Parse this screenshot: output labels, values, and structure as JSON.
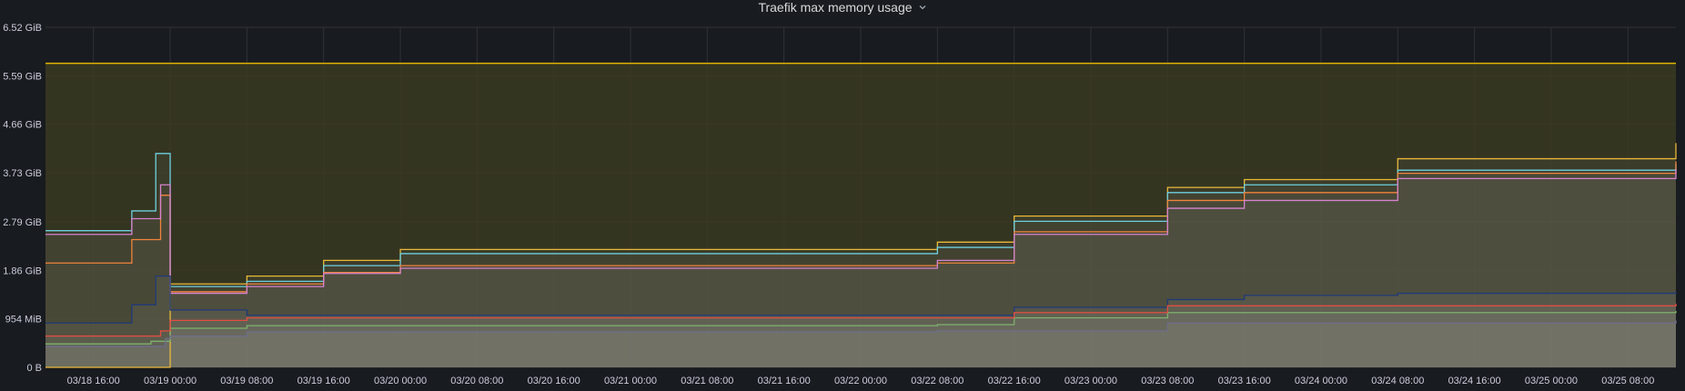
{
  "panel": {
    "title": "Traefik max memory usage",
    "title_icon": "chevron-down-icon"
  },
  "chart_data": {
    "type": "area",
    "title": "Traefik max memory usage",
    "xlabel": "",
    "ylabel": "",
    "y_unit": "GiB",
    "ylim": [
      0,
      6.52
    ],
    "y_ticks": [
      0,
      0.9317,
      1.86,
      2.79,
      3.73,
      4.66,
      5.59,
      6.52
    ],
    "y_tick_labels": [
      "0 B",
      "954 MiB",
      "1.86 GiB",
      "2.79 GiB",
      "3.73 GiB",
      "4.66 GiB",
      "5.59 GiB",
      "6.52 GiB"
    ],
    "xlim": [
      "03/18 11:00",
      "03/25 13:00"
    ],
    "x_tick_labels": [
      "03/18 16:00",
      "03/19 00:00",
      "03/19 08:00",
      "03/19 16:00",
      "03/20 00:00",
      "03/20 08:00",
      "03/20 16:00",
      "03/21 00:00",
      "03/21 08:00",
      "03/21 16:00",
      "03/22 00:00",
      "03/22 08:00",
      "03/22 16:00",
      "03/23 00:00",
      "03/23 08:00",
      "03/23 16:00",
      "03/24 00:00",
      "03/24 08:00",
      "03/24 16:00",
      "03/25 00:00",
      "03/25 08:00"
    ],
    "grid": true,
    "legend": "none",
    "limit_line": {
      "value": 5.83,
      "color": "#e0b400"
    },
    "colors": {
      "background": "#181b1f",
      "grid": "#2f3237",
      "axis_text": "#ccccdc",
      "limit_fill": "#3a3a22"
    },
    "series": [
      {
        "color": "#eab839",
        "fill": 0.05,
        "values": [
          [
            "03/18 11:00",
            0.0
          ],
          [
            "03/18 23:30",
            0.0
          ],
          [
            "03/19 00:00",
            1.6
          ],
          [
            "03/19 08:00",
            1.75
          ],
          [
            "03/19 16:00",
            2.05
          ],
          [
            "03/20 00:00",
            2.26
          ],
          [
            "03/22 08:00",
            2.4
          ],
          [
            "03/22 16:00",
            2.9
          ],
          [
            "03/23 08:00",
            3.45
          ],
          [
            "03/23 16:00",
            3.6
          ],
          [
            "03/24 08:00",
            4.0
          ],
          [
            "03/25 13:00",
            4.3
          ]
        ]
      },
      {
        "color": "#6ed0e0",
        "fill": 0.05,
        "values": [
          [
            "03/18 11:00",
            2.62
          ],
          [
            "03/18 20:00",
            3.0
          ],
          [
            "03/18 22:30",
            4.1
          ],
          [
            "03/19 00:00",
            1.55
          ],
          [
            "03/19 08:00",
            1.65
          ],
          [
            "03/19 16:00",
            1.95
          ],
          [
            "03/20 00:00",
            2.18
          ],
          [
            "03/22 08:00",
            2.3
          ],
          [
            "03/22 16:00",
            2.8
          ],
          [
            "03/23 08:00",
            3.35
          ],
          [
            "03/23 16:00",
            3.5
          ],
          [
            "03/24 08:00",
            3.78
          ],
          [
            "03/25 13:00",
            3.9
          ]
        ]
      },
      {
        "color": "#ef843c",
        "fill": 0.05,
        "values": [
          [
            "03/18 11:00",
            2.0
          ],
          [
            "03/18 20:00",
            2.45
          ],
          [
            "03/18 23:00",
            3.3
          ],
          [
            "03/19 00:00",
            1.45
          ],
          [
            "03/19 08:00",
            1.6
          ],
          [
            "03/19 16:00",
            1.82
          ],
          [
            "03/20 00:00",
            1.95
          ],
          [
            "03/22 08:00",
            2.0
          ],
          [
            "03/22 16:00",
            2.6
          ],
          [
            "03/23 08:00",
            3.2
          ],
          [
            "03/23 16:00",
            3.35
          ],
          [
            "03/24 08:00",
            3.72
          ],
          [
            "03/25 13:00",
            3.95
          ]
        ]
      },
      {
        "color": "#d683ce",
        "fill": 0.05,
        "values": [
          [
            "03/18 11:00",
            2.55
          ],
          [
            "03/18 20:00",
            2.85
          ],
          [
            "03/18 23:00",
            3.5
          ],
          [
            "03/19 00:00",
            1.42
          ],
          [
            "03/19 08:00",
            1.55
          ],
          [
            "03/19 16:00",
            1.8
          ],
          [
            "03/20 00:00",
            1.9
          ],
          [
            "03/22 08:00",
            2.05
          ],
          [
            "03/22 16:00",
            2.55
          ],
          [
            "03/23 08:00",
            3.05
          ],
          [
            "03/23 16:00",
            3.2
          ],
          [
            "03/24 08:00",
            3.62
          ],
          [
            "03/25 13:00",
            3.8
          ]
        ]
      },
      {
        "color": "#1f3a78",
        "fill": 0.08,
        "values": [
          [
            "03/18 11:00",
            0.85
          ],
          [
            "03/18 20:00",
            1.2
          ],
          [
            "03/18 22:30",
            1.75
          ],
          [
            "03/19 00:00",
            1.1
          ],
          [
            "03/19 08:00",
            1.0
          ],
          [
            "03/22 08:00",
            1.0
          ],
          [
            "03/22 16:00",
            1.15
          ],
          [
            "03/23 08:00",
            1.3
          ],
          [
            "03/23 16:00",
            1.38
          ],
          [
            "03/24 08:00",
            1.42
          ],
          [
            "03/25 13:00",
            1.45
          ]
        ]
      },
      {
        "color": "#7eb26d",
        "fill": 0.08,
        "values": [
          [
            "03/18 11:00",
            0.45
          ],
          [
            "03/18 22:00",
            0.5
          ],
          [
            "03/19 00:00",
            0.75
          ],
          [
            "03/19 08:00",
            0.8
          ],
          [
            "03/22 08:00",
            0.82
          ],
          [
            "03/22 16:00",
            0.95
          ],
          [
            "03/23 08:00",
            1.05
          ],
          [
            "03/25 13:00",
            1.08
          ]
        ]
      },
      {
        "color": "#e24d42",
        "fill": 0.08,
        "values": [
          [
            "03/18 11:00",
            0.6
          ],
          [
            "03/18 23:00",
            0.7
          ],
          [
            "03/19 00:00",
            0.9
          ],
          [
            "03/19 08:00",
            0.95
          ],
          [
            "03/22 08:00",
            0.95
          ],
          [
            "03/22 16:00",
            1.05
          ],
          [
            "03/23 08:00",
            1.18
          ],
          [
            "03/25 13:00",
            1.22
          ]
        ]
      },
      {
        "color": "#6d6e8a",
        "fill": 0.1,
        "values": [
          [
            "03/18 11:00",
            0.4
          ],
          [
            "03/18 23:30",
            0.55
          ],
          [
            "03/19 00:00",
            0.6
          ],
          [
            "03/19 08:00",
            0.68
          ],
          [
            "03/22 08:00",
            0.7
          ],
          [
            "03/23 08:00",
            0.85
          ],
          [
            "03/25 13:00",
            0.9
          ]
        ]
      }
    ]
  }
}
